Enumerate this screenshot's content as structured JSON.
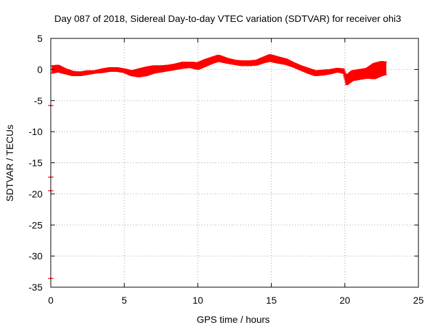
{
  "chart_data": {
    "type": "scatter",
    "title": "Day 087 of 2018, Sidereal Day-to-day VTEC variation (SDTVAR) for receiver ohi3",
    "xlabel": "GPS time / hours",
    "ylabel": "SDTVAR / TECUs",
    "xlim": [
      0,
      25
    ],
    "ylim": [
      -35,
      5
    ],
    "xticks": [
      0,
      5,
      10,
      15,
      20,
      25
    ],
    "yticks": [
      5,
      0,
      -5,
      -10,
      -15,
      -20,
      -25,
      -30,
      -35
    ],
    "xtick_labels": [
      "0",
      "5",
      "10",
      "15",
      "20",
      "25"
    ],
    "ytick_labels": [
      "5",
      "0",
      "-5",
      "-10",
      "-15",
      "-20",
      "-25",
      "-30",
      "-35"
    ],
    "grid": true,
    "legend": "none",
    "series": [
      {
        "name": "SDTVAR ohi3",
        "color": "#ff0000",
        "band": [
          {
            "x": 0.1,
            "lo": -0.6,
            "hi": 0.6
          },
          {
            "x": 0.5,
            "lo": -0.4,
            "hi": 0.7
          },
          {
            "x": 1.0,
            "lo": -0.7,
            "hi": 0.1
          },
          {
            "x": 1.5,
            "lo": -1.0,
            "hi": -0.3
          },
          {
            "x": 2.0,
            "lo": -1.0,
            "hi": -0.4
          },
          {
            "x": 2.5,
            "lo": -0.8,
            "hi": -0.2
          },
          {
            "x": 3.0,
            "lo": -0.6,
            "hi": -0.2
          },
          {
            "x": 3.5,
            "lo": -0.5,
            "hi": 0.1
          },
          {
            "x": 4.0,
            "lo": -0.3,
            "hi": 0.3
          },
          {
            "x": 4.5,
            "lo": -0.3,
            "hi": 0.3
          },
          {
            "x": 5.0,
            "lo": -0.5,
            "hi": 0.1
          },
          {
            "x": 5.5,
            "lo": -1.0,
            "hi": -0.2
          },
          {
            "x": 6.0,
            "lo": -1.2,
            "hi": 0.1
          },
          {
            "x": 6.5,
            "lo": -1.0,
            "hi": 0.4
          },
          {
            "x": 7.0,
            "lo": -0.6,
            "hi": 0.6
          },
          {
            "x": 7.5,
            "lo": -0.4,
            "hi": 0.6
          },
          {
            "x": 8.0,
            "lo": -0.2,
            "hi": 0.7
          },
          {
            "x": 8.5,
            "lo": 0.0,
            "hi": 0.9
          },
          {
            "x": 9.0,
            "lo": 0.2,
            "hi": 1.2
          },
          {
            "x": 9.5,
            "lo": 0.3,
            "hi": 1.2
          },
          {
            "x": 10.0,
            "lo": 0.0,
            "hi": 1.1
          },
          {
            "x": 10.5,
            "lo": 0.5,
            "hi": 1.6
          },
          {
            "x": 11.0,
            "lo": 1.0,
            "hi": 2.0
          },
          {
            "x": 11.4,
            "lo": 1.3,
            "hi": 2.3
          },
          {
            "x": 12.0,
            "lo": 1.0,
            "hi": 1.8
          },
          {
            "x": 12.5,
            "lo": 0.8,
            "hi": 1.5
          },
          {
            "x": 13.0,
            "lo": 0.6,
            "hi": 1.4
          },
          {
            "x": 13.5,
            "lo": 0.6,
            "hi": 1.4
          },
          {
            "x": 14.0,
            "lo": 0.7,
            "hi": 1.5
          },
          {
            "x": 14.5,
            "lo": 1.1,
            "hi": 2.0
          },
          {
            "x": 14.9,
            "lo": 1.3,
            "hi": 2.4
          },
          {
            "x": 15.5,
            "lo": 1.0,
            "hi": 2.0
          },
          {
            "x": 16.0,
            "lo": 0.8,
            "hi": 1.7
          },
          {
            "x": 16.5,
            "lo": 0.4,
            "hi": 1.1
          },
          {
            "x": 17.0,
            "lo": -0.1,
            "hi": 0.6
          },
          {
            "x": 17.5,
            "lo": -0.6,
            "hi": 0.2
          },
          {
            "x": 18.0,
            "lo": -1.0,
            "hi": -0.2
          },
          {
            "x": 18.5,
            "lo": -0.9,
            "hi": -0.1
          },
          {
            "x": 19.0,
            "lo": -0.7,
            "hi": 0.0
          },
          {
            "x": 19.5,
            "lo": -0.4,
            "hi": 0.2
          },
          {
            "x": 19.9,
            "lo": -0.6,
            "hi": 0.1
          },
          {
            "x": 20.1,
            "lo": -2.5,
            "hi": -1.0
          },
          {
            "x": 20.5,
            "lo": -1.8,
            "hi": -0.2
          },
          {
            "x": 21.0,
            "lo": -1.6,
            "hi": 0.0
          },
          {
            "x": 21.5,
            "lo": -1.4,
            "hi": 0.2
          },
          {
            "x": 22.0,
            "lo": -1.5,
            "hi": 1.0
          },
          {
            "x": 22.5,
            "lo": -1.0,
            "hi": 1.3
          },
          {
            "x": 22.8,
            "lo": -0.8,
            "hi": 1.2
          }
        ],
        "outliers": [
          {
            "x": 0.0,
            "y": -5.8
          },
          {
            "x": 0.0,
            "y": -17.3
          },
          {
            "x": 0.0,
            "y": -19.5
          },
          {
            "x": 0.0,
            "y": -33.6
          }
        ]
      }
    ]
  }
}
